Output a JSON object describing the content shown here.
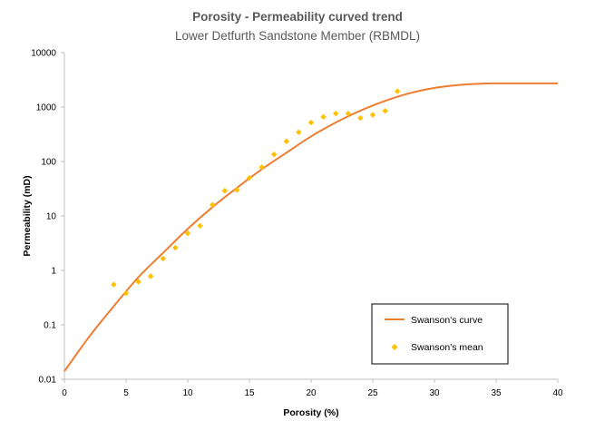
{
  "chart_data": {
    "type": "scatter",
    "title": "Porosity - Permeability curved trend",
    "subtitle": "Lower Detfurth Sandstone Member (RBMDL)",
    "xlabel": "Porosity (%)",
    "ylabel": "Permeability (mD)",
    "xlim": [
      0,
      40
    ],
    "ylim": [
      0.01,
      10000
    ],
    "yscale": "log",
    "x_ticks": [
      0,
      5,
      10,
      15,
      20,
      25,
      30,
      35,
      40
    ],
    "x_tick_labels": [
      "0",
      "5",
      "10",
      "15",
      "20",
      "25",
      "30",
      "35",
      "40"
    ],
    "y_ticks": [
      0.01,
      0.1,
      1,
      10,
      100,
      1000,
      10000
    ],
    "y_tick_labels": [
      "0.01",
      "0.1",
      "1",
      "10",
      "100",
      "1000",
      "10000"
    ],
    "grid": false,
    "legend_position": "bottom-right",
    "series": [
      {
        "name": "Swanson's curve",
        "kind": "line",
        "color": "#ED7D31",
        "x": [
          0,
          2,
          4,
          6,
          8,
          10,
          12,
          14,
          16,
          18,
          20,
          22,
          24,
          26,
          28,
          30,
          32,
          34,
          35,
          36,
          38,
          40
        ],
        "y": [
          0.014,
          0.06,
          0.22,
          0.75,
          2.1,
          5.8,
          14.5,
          33,
          72,
          145,
          290,
          520,
          860,
          1300,
          1800,
          2250,
          2550,
          2700,
          2720,
          2720,
          2720,
          2720
        ]
      },
      {
        "name": "Swanson's mean",
        "kind": "scatter",
        "color": "#FFC000",
        "x": [
          4,
          5,
          6,
          7,
          8,
          9,
          10,
          11,
          12,
          13,
          14,
          15,
          16,
          17,
          18,
          19,
          20,
          21,
          22,
          23,
          24,
          25,
          26,
          27
        ],
        "y": [
          0.55,
          0.38,
          0.62,
          0.78,
          1.65,
          2.6,
          4.8,
          6.6,
          16,
          29,
          30,
          50,
          79,
          135,
          235,
          345,
          520,
          660,
          760,
          760,
          630,
          720,
          850,
          1950
        ]
      }
    ]
  }
}
